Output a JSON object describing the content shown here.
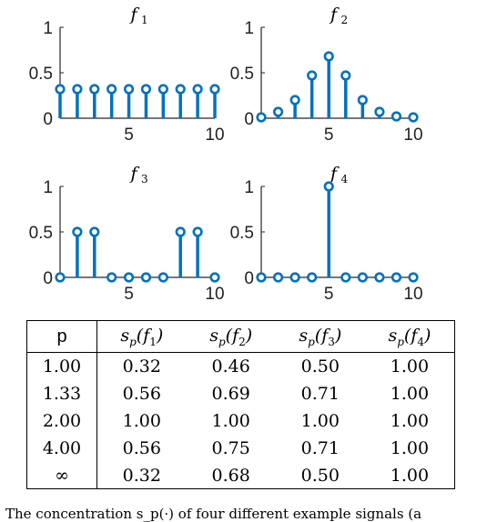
{
  "chart_data": [
    {
      "type": "stem",
      "title": "f",
      "title_sub": "1",
      "x": [
        1,
        2,
        3,
        4,
        5,
        6,
        7,
        8,
        9,
        10
      ],
      "values": [
        0.32,
        0.32,
        0.32,
        0.32,
        0.32,
        0.32,
        0.32,
        0.32,
        0.32,
        0.32
      ],
      "xlim": [
        1,
        10
      ],
      "ylim": [
        0,
        1
      ],
      "xticks": [
        "5",
        "10"
      ],
      "yticks": [
        "0",
        "0.5",
        "1"
      ]
    },
    {
      "type": "stem",
      "title": "f",
      "title_sub": "2",
      "x": [
        1,
        2,
        3,
        4,
        5,
        6,
        7,
        8,
        9,
        10
      ],
      "values": [
        0.01,
        0.07,
        0.2,
        0.47,
        0.68,
        0.47,
        0.2,
        0.07,
        0.02,
        0.01
      ],
      "xlim": [
        1,
        10
      ],
      "ylim": [
        0,
        1
      ],
      "xticks": [
        "5",
        "10"
      ],
      "yticks": [
        "0",
        "0.5",
        "1"
      ]
    },
    {
      "type": "stem",
      "title": "f",
      "title_sub": "3",
      "x": [
        1,
        2,
        3,
        4,
        5,
        6,
        7,
        8,
        9,
        10
      ],
      "values": [
        0,
        0.5,
        0.5,
        0,
        0,
        0,
        0,
        0.5,
        0.5,
        0
      ],
      "xlim": [
        1,
        10
      ],
      "ylim": [
        0,
        1
      ],
      "xticks": [
        "5",
        "10"
      ],
      "yticks": [
        "0",
        "0.5",
        "1"
      ]
    },
    {
      "type": "stem",
      "title": "f",
      "title_sub": "4",
      "x": [
        1,
        2,
        3,
        4,
        5,
        6,
        7,
        8,
        9,
        10
      ],
      "values": [
        0,
        0,
        0,
        0,
        1,
        0,
        0,
        0,
        0,
        0
      ],
      "xlim": [
        1,
        10
      ],
      "ylim": [
        0,
        1
      ],
      "xticks": [
        "5",
        "10"
      ],
      "yticks": [
        "0",
        "0.5",
        "1"
      ]
    }
  ],
  "colors": {
    "stem": "#0072bd",
    "axis": "#262626"
  },
  "table": {
    "header": {
      "p": "p",
      "c1": "s_p(f_1)",
      "c2": "s_p(f_2)",
      "c3": "s_p(f_3)",
      "c4": "s_p(f_4)"
    },
    "rows": [
      {
        "p": "1.00",
        "c1": "0.32",
        "c2": "0.46",
        "c3": "0.50",
        "c4": "1.00"
      },
      {
        "p": "1.33",
        "c1": "0.56",
        "c2": "0.69",
        "c3": "0.71",
        "c4": "1.00"
      },
      {
        "p": "2.00",
        "c1": "1.00",
        "c2": "1.00",
        "c3": "1.00",
        "c4": "1.00"
      },
      {
        "p": "4.00",
        "c1": "0.56",
        "c2": "0.75",
        "c3": "0.71",
        "c4": "1.00"
      },
      {
        "p": "∞",
        "c1": "0.32",
        "c2": "0.68",
        "c3": "0.50",
        "c4": "1.00"
      }
    ]
  },
  "caption": "The concentration s_p(·) of four different example signals (a"
}
